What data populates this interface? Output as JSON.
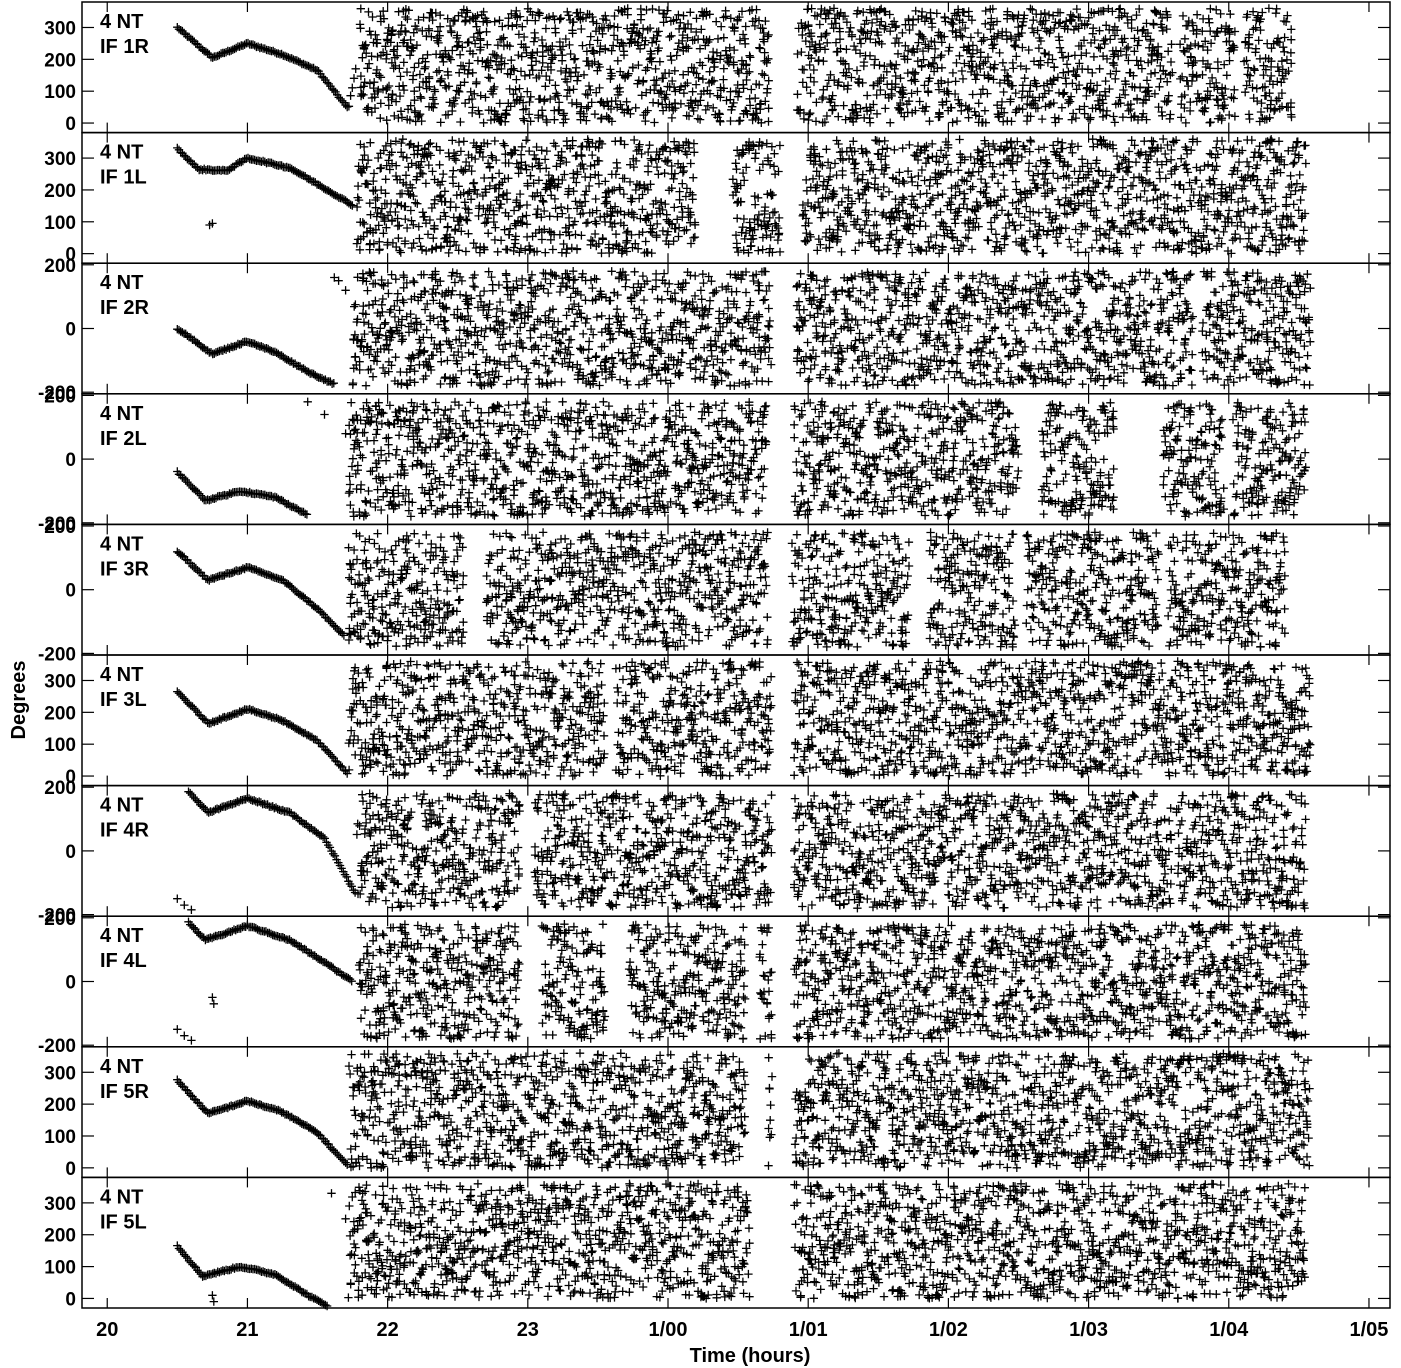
{
  "figure": {
    "ylabel": "Degrees",
    "xlabel": "Time (hours)"
  },
  "chart_data": {
    "type": "scatter",
    "marker": "+",
    "marker_color": "#000000",
    "grid": false,
    "xlabel": "Time (hours)",
    "ylabel": "Degrees",
    "xlim": [
      19.82,
      29.15
    ],
    "x_ticks": [
      {
        "x": 20,
        "label": "20"
      },
      {
        "x": 21,
        "label": "21"
      },
      {
        "x": 22,
        "label": "22"
      },
      {
        "x": 23,
        "label": "23"
      },
      {
        "x": 24,
        "label": "1/00"
      },
      {
        "x": 25,
        "label": "1/01"
      },
      {
        "x": 26,
        "label": "1/02"
      },
      {
        "x": 27,
        "label": "1/03"
      },
      {
        "x": 28,
        "label": "1/04"
      },
      {
        "x": 29,
        "label": "1/05"
      }
    ],
    "panels": [
      {
        "label": [
          "4 NT",
          "IF 1R"
        ],
        "wrap": "pos",
        "ylim": [
          -30,
          380
        ],
        "yticks": [
          0,
          100,
          200,
          300
        ],
        "smooth": [
          [
            20.5,
            300
          ],
          [
            20.75,
            205
          ],
          [
            21.0,
            250
          ],
          [
            21.25,
            215
          ],
          [
            21.5,
            165
          ],
          [
            21.72,
            45
          ],
          [
            21.78,
            190
          ]
        ],
        "scatter": {
          "start": 21.8,
          "end": 28.45,
          "gaps": [
            [
              24.72,
              24.92
            ],
            [
              27.6,
              27.65
            ],
            [
              28.05,
              28.1
            ]
          ]
        }
      },
      {
        "label": [
          "4 NT",
          "IF 1L"
        ],
        "wrap": "pos",
        "ylim": [
          -30,
          380
        ],
        "yticks": [
          0,
          100,
          200,
          300
        ],
        "smooth": [
          [
            20.5,
            330
          ],
          [
            20.65,
            265
          ],
          [
            20.85,
            260
          ],
          [
            21.0,
            300
          ],
          [
            21.3,
            270
          ],
          [
            21.55,
            205
          ],
          [
            21.72,
            160
          ],
          [
            21.76,
            150
          ]
        ],
        "extra": [
          [
            20.73,
            90
          ],
          [
            20.75,
            95
          ]
        ],
        "scatter": {
          "start": 21.78,
          "end": 28.55,
          "gaps": [
            [
              24.2,
              24.45
            ],
            [
              24.8,
              24.95
            ]
          ]
        }
      },
      {
        "label": [
          "4 NT",
          "IF 2R"
        ],
        "wrap": "sym",
        "ylim": [
          -205,
          205
        ],
        "yticks": [
          -200,
          0,
          200
        ],
        "smooth": [
          [
            20.5,
            0
          ],
          [
            20.75,
            -80
          ],
          [
            21.0,
            -40
          ],
          [
            21.2,
            -75
          ],
          [
            21.45,
            -140
          ],
          [
            21.62,
            -175
          ]
        ],
        "extra": [
          [
            21.62,
            160
          ],
          [
            21.65,
            150
          ],
          [
            21.7,
            120
          ]
        ],
        "scatter": {
          "start": 21.75,
          "end": 28.6,
          "gaps": [
            [
              24.75,
              24.9
            ],
            [
              27.75,
              27.8
            ]
          ]
        }
      },
      {
        "label": [
          "4 NT",
          "IF 2L"
        ],
        "wrap": "sym",
        "ylim": [
          -205,
          205
        ],
        "yticks": [
          -200,
          0,
          200
        ],
        "smooth": [
          [
            20.5,
            -40
          ],
          [
            20.7,
            -130
          ],
          [
            20.95,
            -100
          ],
          [
            21.2,
            -120
          ],
          [
            21.43,
            -175
          ]
        ],
        "extra": [
          [
            21.43,
            180
          ],
          [
            21.55,
            140
          ],
          [
            21.7,
            80
          ]
        ],
        "scatter": {
          "start": 21.72,
          "end": 28.55,
          "gaps": [
            [
              24.7,
              24.9
            ],
            [
              26.5,
              26.65
            ],
            [
              27.18,
              27.52
            ],
            [
              27.98,
              28.02
            ]
          ]
        }
      },
      {
        "label": [
          "4 NT",
          "IF 3R"
        ],
        "wrap": "sym",
        "ylim": [
          -205,
          205
        ],
        "yticks": [
          -200,
          0,
          200
        ],
        "smooth": [
          [
            20.5,
            120
          ],
          [
            20.72,
            30
          ],
          [
            21.0,
            70
          ],
          [
            21.25,
            30
          ],
          [
            21.5,
            -60
          ],
          [
            21.7,
            -150
          ]
        ],
        "scatter": {
          "start": 21.72,
          "end": 28.4,
          "gaps": [
            [
              22.55,
              22.7
            ],
            [
              24.72,
              24.88
            ],
            [
              25.72,
              25.85
            ],
            [
              26.48,
              26.55
            ],
            [
              27.5,
              27.55
            ]
          ]
        }
      },
      {
        "label": [
          "4 NT",
          "IF 3L"
        ],
        "wrap": "pos",
        "ylim": [
          -30,
          380
        ],
        "yticks": [
          0,
          100,
          200,
          300
        ],
        "smooth": [
          [
            20.5,
            265
          ],
          [
            20.72,
            165
          ],
          [
            21.0,
            210
          ],
          [
            21.25,
            175
          ],
          [
            21.5,
            110
          ],
          [
            21.72,
            5
          ]
        ],
        "scatter": {
          "start": 21.72,
          "end": 28.6,
          "gaps": [
            [
              23.55,
              23.62
            ],
            [
              24.75,
              24.9
            ]
          ]
        }
      },
      {
        "label": [
          "4 NT",
          "IF 4R"
        ],
        "wrap": "sym",
        "ylim": [
          -205,
          205
        ],
        "yticks": [
          -200,
          0,
          200
        ],
        "smooth": [
          [
            20.58,
            185
          ],
          [
            20.72,
            120
          ],
          [
            21.0,
            165
          ],
          [
            21.3,
            120
          ],
          [
            21.55,
            40
          ],
          [
            21.78,
            -140
          ]
        ],
        "extra": [
          [
            20.5,
            -150
          ],
          [
            20.55,
            -170
          ],
          [
            20.6,
            -185
          ]
        ],
        "scatter": {
          "start": 21.78,
          "end": 28.55,
          "gaps": [
            [
              22.95,
              23.05
            ],
            [
              24.75,
              24.9
            ],
            [
              27.6,
              27.62
            ]
          ]
        }
      },
      {
        "label": [
          "4 NT",
          "IF 4L"
        ],
        "wrap": "sym",
        "ylim": [
          -205,
          205
        ],
        "yticks": [
          -200,
          0,
          200
        ],
        "smooth": [
          [
            20.58,
            185
          ],
          [
            20.7,
            130
          ],
          [
            21.0,
            175
          ],
          [
            21.3,
            130
          ],
          [
            21.55,
            60
          ],
          [
            21.75,
            0
          ]
        ],
        "extra": [
          [
            20.5,
            -150
          ],
          [
            20.55,
            -170
          ],
          [
            20.6,
            -185
          ],
          [
            20.75,
            -50
          ],
          [
            20.76,
            -70
          ]
        ],
        "scatter": {
          "start": 21.78,
          "end": 28.55,
          "gaps": [
            [
              22.95,
              23.1
            ],
            [
              23.55,
              23.72
            ],
            [
              24.55,
              24.65
            ],
            [
              24.75,
              24.9
            ]
          ]
        }
      },
      {
        "label": [
          "4 NT",
          "IF 5R"
        ],
        "wrap": "pos",
        "ylim": [
          -30,
          380
        ],
        "yticks": [
          0,
          100,
          200,
          300
        ],
        "smooth": [
          [
            20.5,
            275
          ],
          [
            20.72,
            170
          ],
          [
            21.0,
            210
          ],
          [
            21.25,
            175
          ],
          [
            21.5,
            110
          ],
          [
            21.72,
            5
          ]
        ],
        "scatter": {
          "start": 21.72,
          "end": 28.6,
          "gaps": [
            [
              24.55,
              24.7
            ],
            [
              24.75,
              24.9
            ]
          ]
        }
      },
      {
        "label": [
          "4 NT",
          "IF 5L"
        ],
        "wrap": "pos",
        "ylim": [
          -30,
          380
        ],
        "yticks": [
          0,
          100,
          200,
          300
        ],
        "smooth": [
          [
            20.5,
            165
          ],
          [
            20.68,
            70
          ],
          [
            20.95,
            100
          ],
          [
            21.2,
            75
          ],
          [
            21.45,
            5
          ],
          [
            21.58,
            -25
          ]
        ],
        "extra": [
          [
            20.75,
            10
          ],
          [
            20.76,
            -10
          ],
          [
            21.6,
            330
          ],
          [
            21.7,
            250
          ]
        ],
        "scatter": {
          "start": 21.72,
          "end": 28.55,
          "gaps": [
            [
              24.6,
              24.9
            ]
          ]
        }
      }
    ]
  }
}
